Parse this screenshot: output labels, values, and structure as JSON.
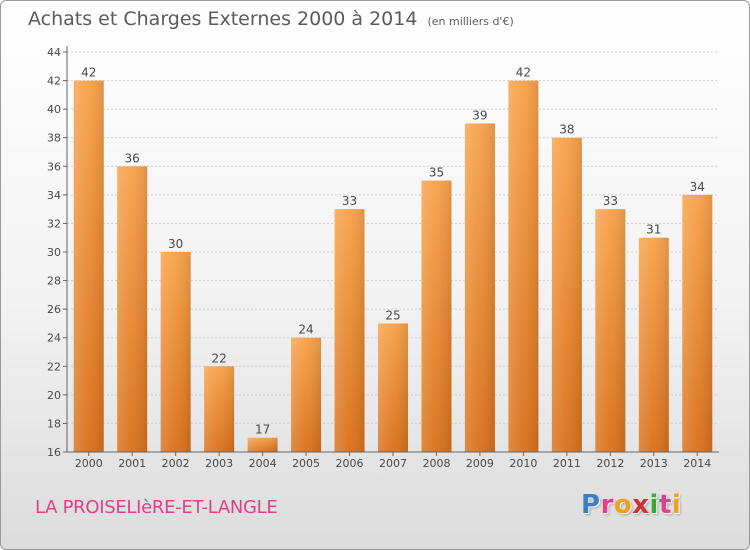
{
  "header": {
    "title": "Achats et Charges Externes 2000 à 2014",
    "subtitle": "(en milliers d'€)"
  },
  "footer": {
    "commune": "LA PROISELIèRE-ET-LANGLE"
  },
  "logo": {
    "text": "Proxiti",
    "letter_colors": [
      "#3a7fc4",
      "#e0408a",
      "#f0a020",
      "#d03030",
      "#3aa838",
      "#e0408a",
      "#f0a020"
    ]
  },
  "colors": {
    "bar_top": "#f8a24a",
    "bar_bottom": "#d9701a",
    "label": "#4a4a4a",
    "axis": "#666666",
    "grid": "#cfcfcf"
  },
  "chart_data": {
    "type": "bar",
    "categories": [
      "2000",
      "2001",
      "2002",
      "2003",
      "2004",
      "2005",
      "2006",
      "2007",
      "2008",
      "2009",
      "2010",
      "2011",
      "2012",
      "2013",
      "2014"
    ],
    "values": [
      42,
      36,
      30,
      22,
      17,
      24,
      33,
      25,
      35,
      39,
      42,
      38,
      33,
      31,
      34
    ],
    "ylim": [
      16,
      44
    ],
    "yticks": [
      16,
      18,
      20,
      22,
      24,
      26,
      28,
      30,
      32,
      34,
      36,
      38,
      40,
      42,
      44
    ],
    "grid": true,
    "data_labels": true,
    "legend": "none"
  }
}
